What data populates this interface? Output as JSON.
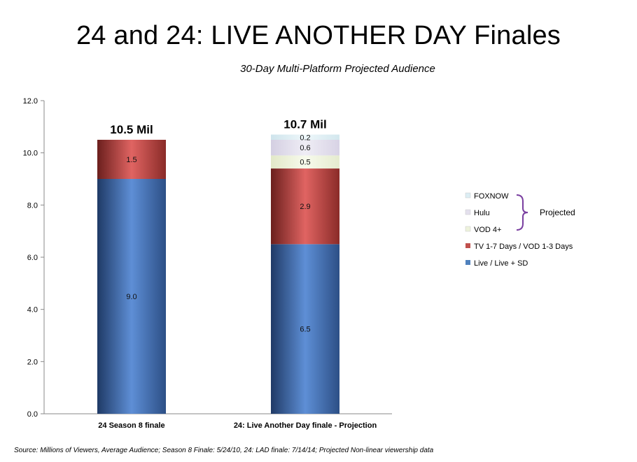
{
  "title": "24 and 24: LIVE ANOTHER DAY Finales",
  "subtitle": "30-Day Multi-Platform Projected Audience",
  "source": "Source: Millions of Viewers, Average Audience; Season 8 Finale: 5/24/10, 24: LAD finale: 7/14/14; Projected Non-linear viewership data",
  "projected_label": "Projected",
  "colors": {
    "live": "#4f81bd",
    "tv": "#c0504d",
    "vod": "#eef3dc",
    "hulu": "#e4e0ee",
    "foxnow": "#dceef4"
  },
  "chart_data": {
    "type": "bar",
    "stacked": true,
    "categories": [
      "24 Season 8 finale",
      "24: Live Another Day finale - Projection"
    ],
    "totals": [
      "10.5 Mil",
      "10.7 Mil"
    ],
    "ylim": [
      0,
      12
    ],
    "yticks": [
      "0.0",
      "2.0",
      "4.0",
      "6.0",
      "8.0",
      "10.0",
      "12.0"
    ],
    "grid": false,
    "legend_position": "right",
    "series": [
      {
        "key": "live",
        "name": "Live / Live + SD",
        "values": [
          9.0,
          6.5
        ],
        "labels": [
          "9.0",
          "6.5"
        ]
      },
      {
        "key": "tv",
        "name": "TV 1-7  Days / VOD 1-3 Days",
        "values": [
          1.5,
          2.9
        ],
        "labels": [
          "1.5",
          "2.9"
        ]
      },
      {
        "key": "vod",
        "name": "VOD 4+",
        "values": [
          0,
          0.5
        ],
        "labels": [
          "",
          "0.5"
        ]
      },
      {
        "key": "hulu",
        "name": "Hulu",
        "values": [
          0,
          0.6
        ],
        "labels": [
          "",
          "0.6"
        ]
      },
      {
        "key": "foxnow",
        "name": "FOXNOW",
        "values": [
          0,
          0.2
        ],
        "labels": [
          "",
          "0.2"
        ]
      }
    ],
    "legend_order": [
      "foxnow",
      "hulu",
      "vod",
      "tv",
      "live"
    ]
  }
}
